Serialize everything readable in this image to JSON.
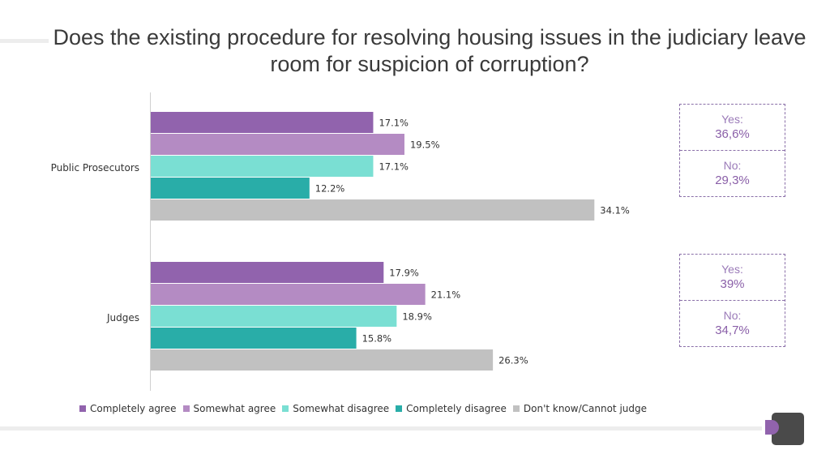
{
  "title": "Does the existing procedure for resolving housing issues in the judiciary leave room for suspicion of corruption?",
  "chart_data": {
    "type": "bar",
    "orientation": "horizontal",
    "categories": [
      "Public Prosecutors",
      "Judges"
    ],
    "series": [
      {
        "name": "Completely agree",
        "color": "#9163ad",
        "values": [
          17.1,
          17.9
        ],
        "labels": [
          "17.1%",
          "17.9%"
        ]
      },
      {
        "name": "Somewhat agree",
        "color": "#b48bc3",
        "values": [
          19.5,
          21.1
        ],
        "labels": [
          "19.5%",
          "21.1%"
        ]
      },
      {
        "name": "Somewhat disagree",
        "color": "#7adfd3",
        "values": [
          17.1,
          18.9
        ],
        "labels": [
          "17.1%",
          "18.9%"
        ]
      },
      {
        "name": "Completely disagree",
        "color": "#29ada8",
        "values": [
          12.2,
          15.8
        ],
        "labels": [
          "12.2%",
          "15.8%"
        ]
      },
      {
        "name": "Don't know/Cannot judge",
        "color": "#c1c1c1",
        "values": [
          34.1,
          26.3
        ],
        "labels": [
          "34.1%",
          "26.3%"
        ]
      }
    ],
    "xlim": [
      0,
      40
    ],
    "grid": false,
    "legend_position": "bottom"
  },
  "summary": [
    {
      "yes_label": "Yes:",
      "yes_value": "36,6%",
      "no_label": "No:",
      "no_value": "29,3%"
    },
    {
      "yes_label": "Yes:",
      "yes_value": "39%",
      "no_label": "No:",
      "no_value": "34,7%"
    }
  ]
}
